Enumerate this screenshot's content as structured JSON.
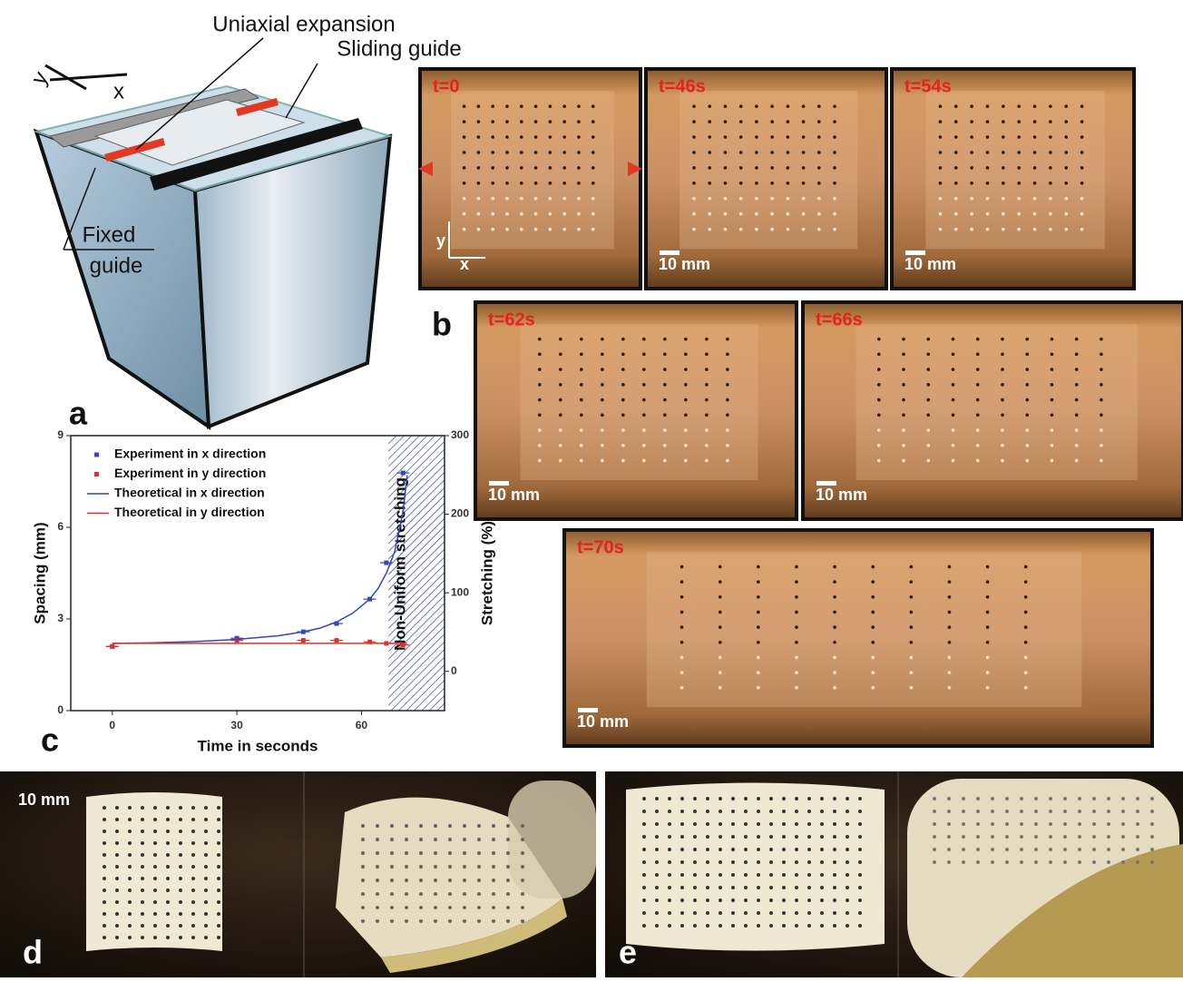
{
  "panel_a": {
    "letter": "a",
    "labels": [
      "Uniaxial expansion",
      "Sliding guide"
    ],
    "fixed_guide": [
      "Fixed",
      "guide"
    ],
    "axes": [
      "y",
      "x"
    ]
  },
  "panel_b": {
    "letter": "b",
    "photos": [
      {
        "time": "t=0",
        "axes": [
          "y",
          "x"
        ]
      },
      {
        "time": "t=46s",
        "scale_bar": "10 mm"
      },
      {
        "time": "t=54s",
        "scale_bar": "10 mm"
      },
      {
        "time": "t=62s",
        "scale_bar": "10 mm"
      },
      {
        "time": "t=66s",
        "scale_bar": "10 mm"
      },
      {
        "time": "t=70s",
        "scale_bar": "10 mm"
      }
    ]
  },
  "panel_c": {
    "letter": "c"
  },
  "panel_d": {
    "letter": "d",
    "scale_bar": "10 mm"
  },
  "panel_e": {
    "letter": "e"
  },
  "chart_data": {
    "type": "line",
    "xlabel": "Time in seconds",
    "ylabel": "Spacing (mm)",
    "y2label": "Stretching (%)",
    "xlim": [
      -10,
      80
    ],
    "xticks": [
      0,
      30,
      60
    ],
    "ylim": [
      0,
      9
    ],
    "yticks": [
      0,
      3,
      6,
      9
    ],
    "y2lim": [
      -50,
      300
    ],
    "y2ticks": [
      0,
      100,
      200,
      300
    ],
    "region": {
      "label": "Non-Uniform stretching",
      "xlim": [
        66.5,
        80
      ]
    },
    "series": [
      {
        "name": "Experiment in x direction",
        "color": "#3447b8",
        "style": "markers",
        "x": [
          0,
          30,
          46,
          54,
          62,
          66,
          70
        ],
        "values": [
          2.1,
          2.37,
          2.58,
          2.85,
          3.65,
          4.84,
          7.78
        ]
      },
      {
        "name": "Experiment in y direction",
        "color": "#e0302a",
        "style": "markers",
        "x": [
          0,
          30,
          46,
          54,
          62,
          66,
          70
        ],
        "values": [
          2.1,
          2.3,
          2.3,
          2.3,
          2.25,
          2.2,
          2.15
        ]
      },
      {
        "name": "Theoretical in x direction",
        "color": "#3447b8",
        "style": "line",
        "x": [
          0,
          10,
          20,
          30,
          40,
          46,
          50,
          54,
          58,
          62,
          64,
          66,
          68,
          70,
          71
        ],
        "values": [
          2.2,
          2.22,
          2.26,
          2.33,
          2.45,
          2.58,
          2.7,
          2.9,
          3.2,
          3.65,
          4.0,
          4.5,
          5.2,
          6.5,
          7.7
        ]
      },
      {
        "name": "Theoretical in y direction",
        "color": "#e0302a",
        "style": "line",
        "x": [
          0,
          71
        ],
        "values": [
          2.2,
          2.2
        ]
      }
    ]
  }
}
